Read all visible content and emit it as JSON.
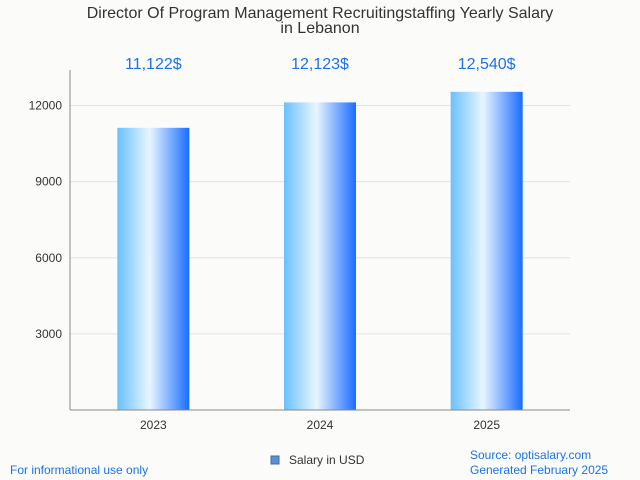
{
  "chart_data": {
    "type": "bar",
    "title_line1": "Director Of Program Management Recruitingstaffing Yearly Salary",
    "title_line2": "in Lebanon",
    "categories": [
      "2023",
      "2024",
      "2025"
    ],
    "series": [
      {
        "name": "Salary in USD",
        "values": [
          11122,
          12123,
          12540
        ]
      }
    ],
    "data_labels": [
      "11,122$",
      "12,123$",
      "12,540$"
    ],
    "y_ticks": [
      3000,
      6000,
      9000,
      12000
    ],
    "ylim": [
      0,
      13400
    ],
    "grid": true,
    "legend_position": "bottom-center",
    "xlabel": "",
    "ylabel": ""
  },
  "colors": {
    "bar_light": "#e9f6ff",
    "bar_mid": "#6ac0ff",
    "bar_dark": "#1a6cff",
    "label": "#1a73e8",
    "grid": "#e2e2e2",
    "axis": "#888888"
  },
  "footer": {
    "note": "For informational use only",
    "source": "Source: optisalary.com",
    "generated": "Generated February 2025"
  }
}
